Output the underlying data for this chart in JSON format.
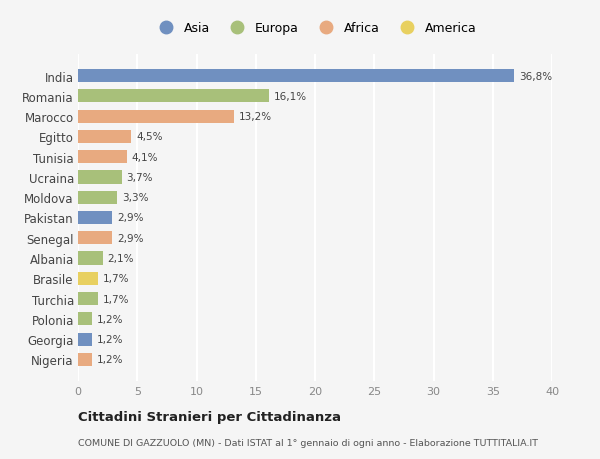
{
  "countries": [
    "India",
    "Romania",
    "Marocco",
    "Egitto",
    "Tunisia",
    "Ucraina",
    "Moldova",
    "Pakistan",
    "Senegal",
    "Albania",
    "Brasile",
    "Turchia",
    "Polonia",
    "Georgia",
    "Nigeria"
  ],
  "values": [
    36.8,
    16.1,
    13.2,
    4.5,
    4.1,
    3.7,
    3.3,
    2.9,
    2.9,
    2.1,
    1.7,
    1.7,
    1.2,
    1.2,
    1.2
  ],
  "labels": [
    "36,8%",
    "16,1%",
    "13,2%",
    "4,5%",
    "4,1%",
    "3,7%",
    "3,3%",
    "2,9%",
    "2,9%",
    "2,1%",
    "1,7%",
    "1,7%",
    "1,2%",
    "1,2%",
    "1,2%"
  ],
  "continents": [
    "Asia",
    "Europa",
    "Africa",
    "Africa",
    "Africa",
    "Europa",
    "Europa",
    "Asia",
    "Africa",
    "Europa",
    "America",
    "Europa",
    "Europa",
    "Asia",
    "Africa"
  ],
  "colors": {
    "Asia": "#7090C0",
    "Europa": "#A8C07A",
    "Africa": "#E8AA80",
    "America": "#E8D060"
  },
  "background_color": "#f5f5f5",
  "title": "Cittadini Stranieri per Cittadinanza",
  "subtitle": "COMUNE DI GAZZUOLO (MN) - Dati ISTAT al 1° gennaio di ogni anno - Elaborazione TUTTITALIA.IT",
  "xlim": [
    0,
    40
  ],
  "xticks": [
    0,
    5,
    10,
    15,
    20,
    25,
    30,
    35,
    40
  ],
  "legend_order": [
    "Asia",
    "Europa",
    "Africa",
    "America"
  ]
}
